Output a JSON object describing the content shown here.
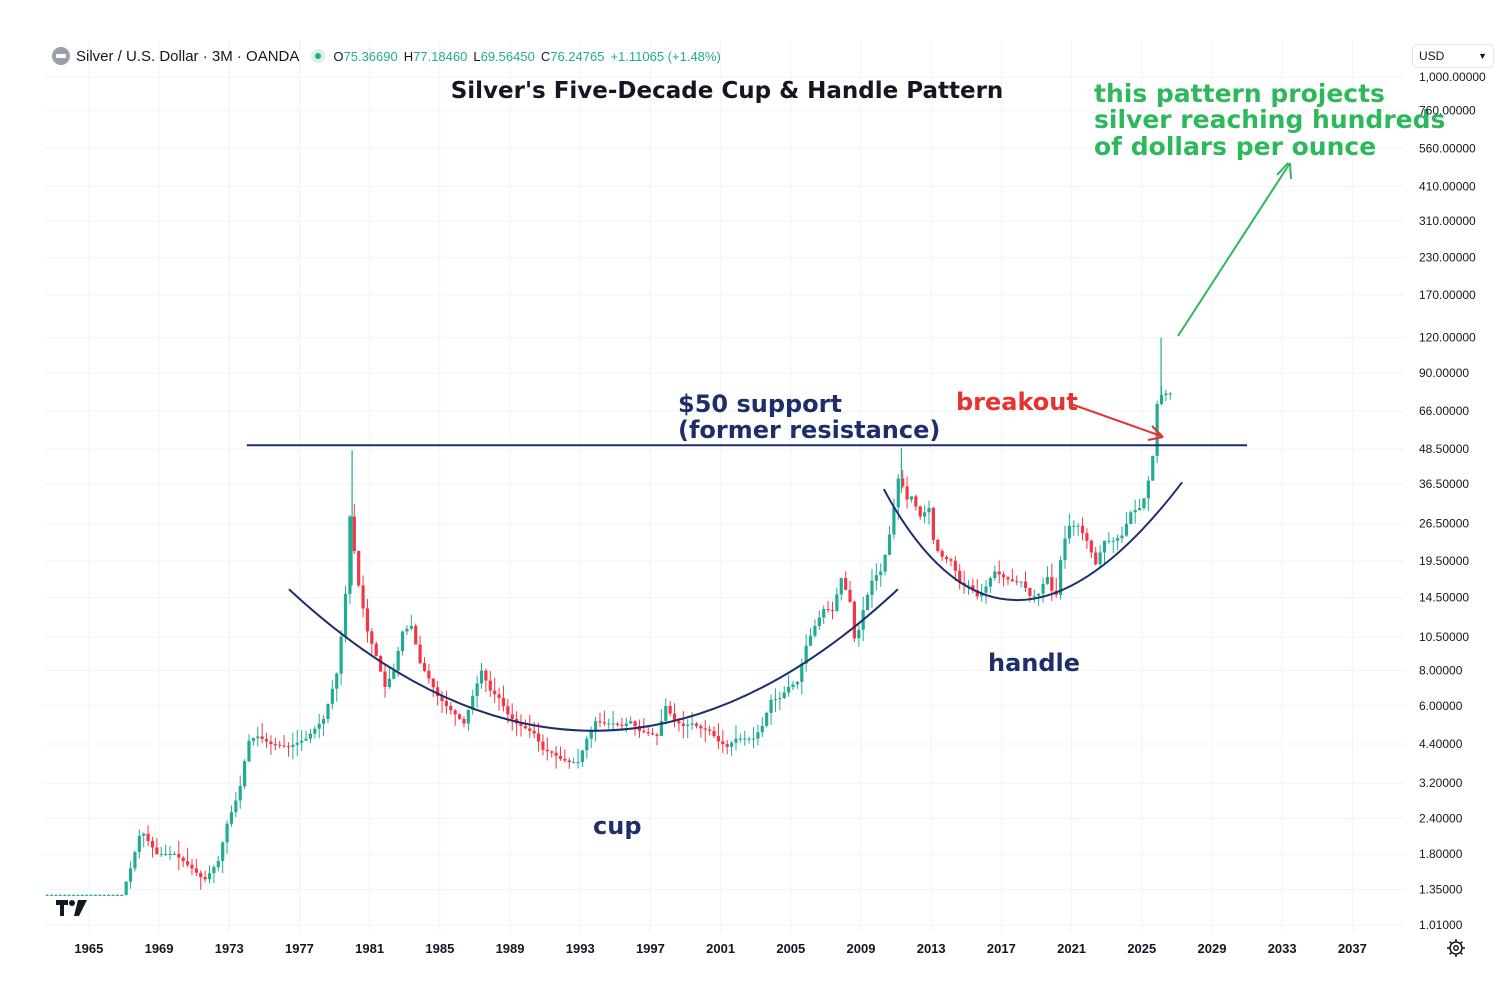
{
  "header": {
    "symbol": "Silver / U.S. Dollar · 3M · OANDA",
    "o_label": "O",
    "o_value": "75.36690",
    "h_label": "H",
    "h_value": "77.18460",
    "l_label": "L",
    "l_value": "69.56450",
    "c_label": "C",
    "c_value": "76.24765",
    "change": "+1.11065 (+1.48%)"
  },
  "currency": "USD",
  "colors": {
    "up": "#22ab94",
    "down": "#f23645",
    "navy": "#1e2e6b",
    "green": "#2eb85c",
    "red": "#e8322d"
  },
  "chart_data": {
    "type": "candlestick",
    "title": "Silver's Five-Decade Cup & Handle Pattern",
    "y_scale": "log",
    "ylim": [
      1.0,
      1000.0
    ],
    "xlim": [
      1962.5,
      2040.0
    ],
    "x_ticks": [
      "1965",
      "1969",
      "1973",
      "1977",
      "1981",
      "1985",
      "1989",
      "1993",
      "1997",
      "2001",
      "2005",
      "2009",
      "2013",
      "2017",
      "2021",
      "2025",
      "2029",
      "2033",
      "2037"
    ],
    "y_ticks": [
      "1,000.00000",
      "760.00000",
      "560.00000",
      "410.00000",
      "310.00000",
      "230.00000",
      "170.00000",
      "120.00000",
      "90.00000",
      "66.00000",
      "48.50000",
      "36.50000",
      "26.50000",
      "19.50000",
      "14.50000",
      "10.50000",
      "8.00000",
      "6.00000",
      "4.40000",
      "3.20000",
      "2.40000",
      "1.80000",
      "1.35000",
      "1.01000"
    ],
    "price_path": [
      [
        1962.5,
        1.29
      ],
      [
        1967.0,
        1.29
      ],
      [
        1967.5,
        1.6
      ],
      [
        1968.1,
        2.2
      ],
      [
        1968.5,
        2.0
      ],
      [
        1969.0,
        1.8
      ],
      [
        1970.0,
        1.8
      ],
      [
        1971.0,
        1.6
      ],
      [
        1971.7,
        1.45
      ],
      [
        1972.5,
        1.7
      ],
      [
        1973.0,
        2.3
      ],
      [
        1973.7,
        3.0
      ],
      [
        1974.2,
        4.5
      ],
      [
        1974.7,
        4.7
      ],
      [
        1975.5,
        4.4
      ],
      [
        1976.5,
        4.3
      ],
      [
        1977.5,
        4.6
      ],
      [
        1978.5,
        5.4
      ],
      [
        1979.3,
        8.0
      ],
      [
        1979.8,
        16.0
      ],
      [
        1980.0,
        28.0
      ],
      [
        1980.5,
        16.0
      ],
      [
        1981.0,
        11.0
      ],
      [
        1981.5,
        9.0
      ],
      [
        1982.0,
        7.0
      ],
      [
        1982.5,
        8.0
      ],
      [
        1983.0,
        11.0
      ],
      [
        1983.5,
        11.5
      ],
      [
        1984.0,
        8.5
      ],
      [
        1984.5,
        7.5
      ],
      [
        1985.0,
        6.5
      ],
      [
        1985.5,
        6.0
      ],
      [
        1986.0,
        5.6
      ],
      [
        1986.5,
        5.2
      ],
      [
        1987.0,
        6.5
      ],
      [
        1987.5,
        8.0
      ],
      [
        1988.0,
        6.8
      ],
      [
        1988.5,
        6.4
      ],
      [
        1989.0,
        5.6
      ],
      [
        1989.5,
        5.2
      ],
      [
        1990.0,
        5.0
      ],
      [
        1990.5,
        4.8
      ],
      [
        1991.0,
        4.2
      ],
      [
        1991.5,
        4.1
      ],
      [
        1992.0,
        3.9
      ],
      [
        1992.5,
        3.8
      ],
      [
        1993.0,
        3.8
      ],
      [
        1993.5,
        4.6
      ],
      [
        1994.0,
        5.3
      ],
      [
        1994.5,
        5.2
      ],
      [
        1995.0,
        5.2
      ],
      [
        1995.5,
        5.1
      ],
      [
        1996.0,
        5.3
      ],
      [
        1996.5,
        4.9
      ],
      [
        1997.0,
        4.8
      ],
      [
        1997.5,
        4.7
      ],
      [
        1998.0,
        6.0
      ],
      [
        1998.5,
        5.3
      ],
      [
        1999.0,
        5.1
      ],
      [
        1999.5,
        5.2
      ],
      [
        2000.0,
        5.0
      ],
      [
        2000.5,
        4.9
      ],
      [
        2001.0,
        4.5
      ],
      [
        2001.5,
        4.3
      ],
      [
        2002.0,
        4.6
      ],
      [
        2002.5,
        4.6
      ],
      [
        2003.0,
        4.6
      ],
      [
        2003.5,
        5.1
      ],
      [
        2004.0,
        6.3
      ],
      [
        2004.5,
        6.4
      ],
      [
        2005.0,
        7.0
      ],
      [
        2005.5,
        7.3
      ],
      [
        2006.0,
        9.8
      ],
      [
        2006.5,
        11.5
      ],
      [
        2007.0,
        13.2
      ],
      [
        2007.5,
        13.0
      ],
      [
        2008.0,
        17.0
      ],
      [
        2008.5,
        14.0
      ],
      [
        2008.8,
        9.8
      ],
      [
        2009.3,
        13.5
      ],
      [
        2009.8,
        17.0
      ],
      [
        2010.3,
        18.0
      ],
      [
        2010.8,
        25.0
      ],
      [
        2011.3,
        40.0
      ],
      [
        2011.7,
        32.0
      ],
      [
        2012.0,
        33.0
      ],
      [
        2012.5,
        28.0
      ],
      [
        2013.0,
        30.0
      ],
      [
        2013.3,
        22.0
      ],
      [
        2013.8,
        20.0
      ],
      [
        2014.3,
        19.5
      ],
      [
        2014.8,
        16.0
      ],
      [
        2015.3,
        16.0
      ],
      [
        2015.8,
        14.5
      ],
      [
        2016.3,
        16.0
      ],
      [
        2016.7,
        18.0
      ],
      [
        2017.3,
        17.0
      ],
      [
        2017.8,
        16.5
      ],
      [
        2018.3,
        16.5
      ],
      [
        2018.8,
        14.5
      ],
      [
        2019.3,
        15.0
      ],
      [
        2019.7,
        17.5
      ],
      [
        2020.2,
        14.0
      ],
      [
        2020.6,
        22.0
      ],
      [
        2021.0,
        26.0
      ],
      [
        2021.5,
        26.0
      ],
      [
        2022.0,
        23.0
      ],
      [
        2022.5,
        19.0
      ],
      [
        2023.0,
        23.0
      ],
      [
        2023.5,
        23.0
      ],
      [
        2024.0,
        24.0
      ],
      [
        2024.5,
        29.0
      ],
      [
        2025.0,
        30.0
      ],
      [
        2025.3,
        33.0
      ],
      [
        2025.6,
        40.0
      ],
      [
        2025.8,
        48.0
      ],
      [
        2026.0,
        70.0
      ],
      [
        2026.2,
        75.0
      ],
      [
        2026.5,
        76.2
      ]
    ],
    "support_level": 50,
    "support_x": [
      1974.0,
      2031.0
    ],
    "annotations": {
      "support_line1": "$50 support",
      "support_line2": "(former resistance)",
      "breakout": "breakout",
      "cup": "cup",
      "handle": "handle",
      "projection_line1": "this pattern projects",
      "projection_line2": "silver reaching hundreds",
      "projection_line3": "of dollars per ounce"
    }
  }
}
